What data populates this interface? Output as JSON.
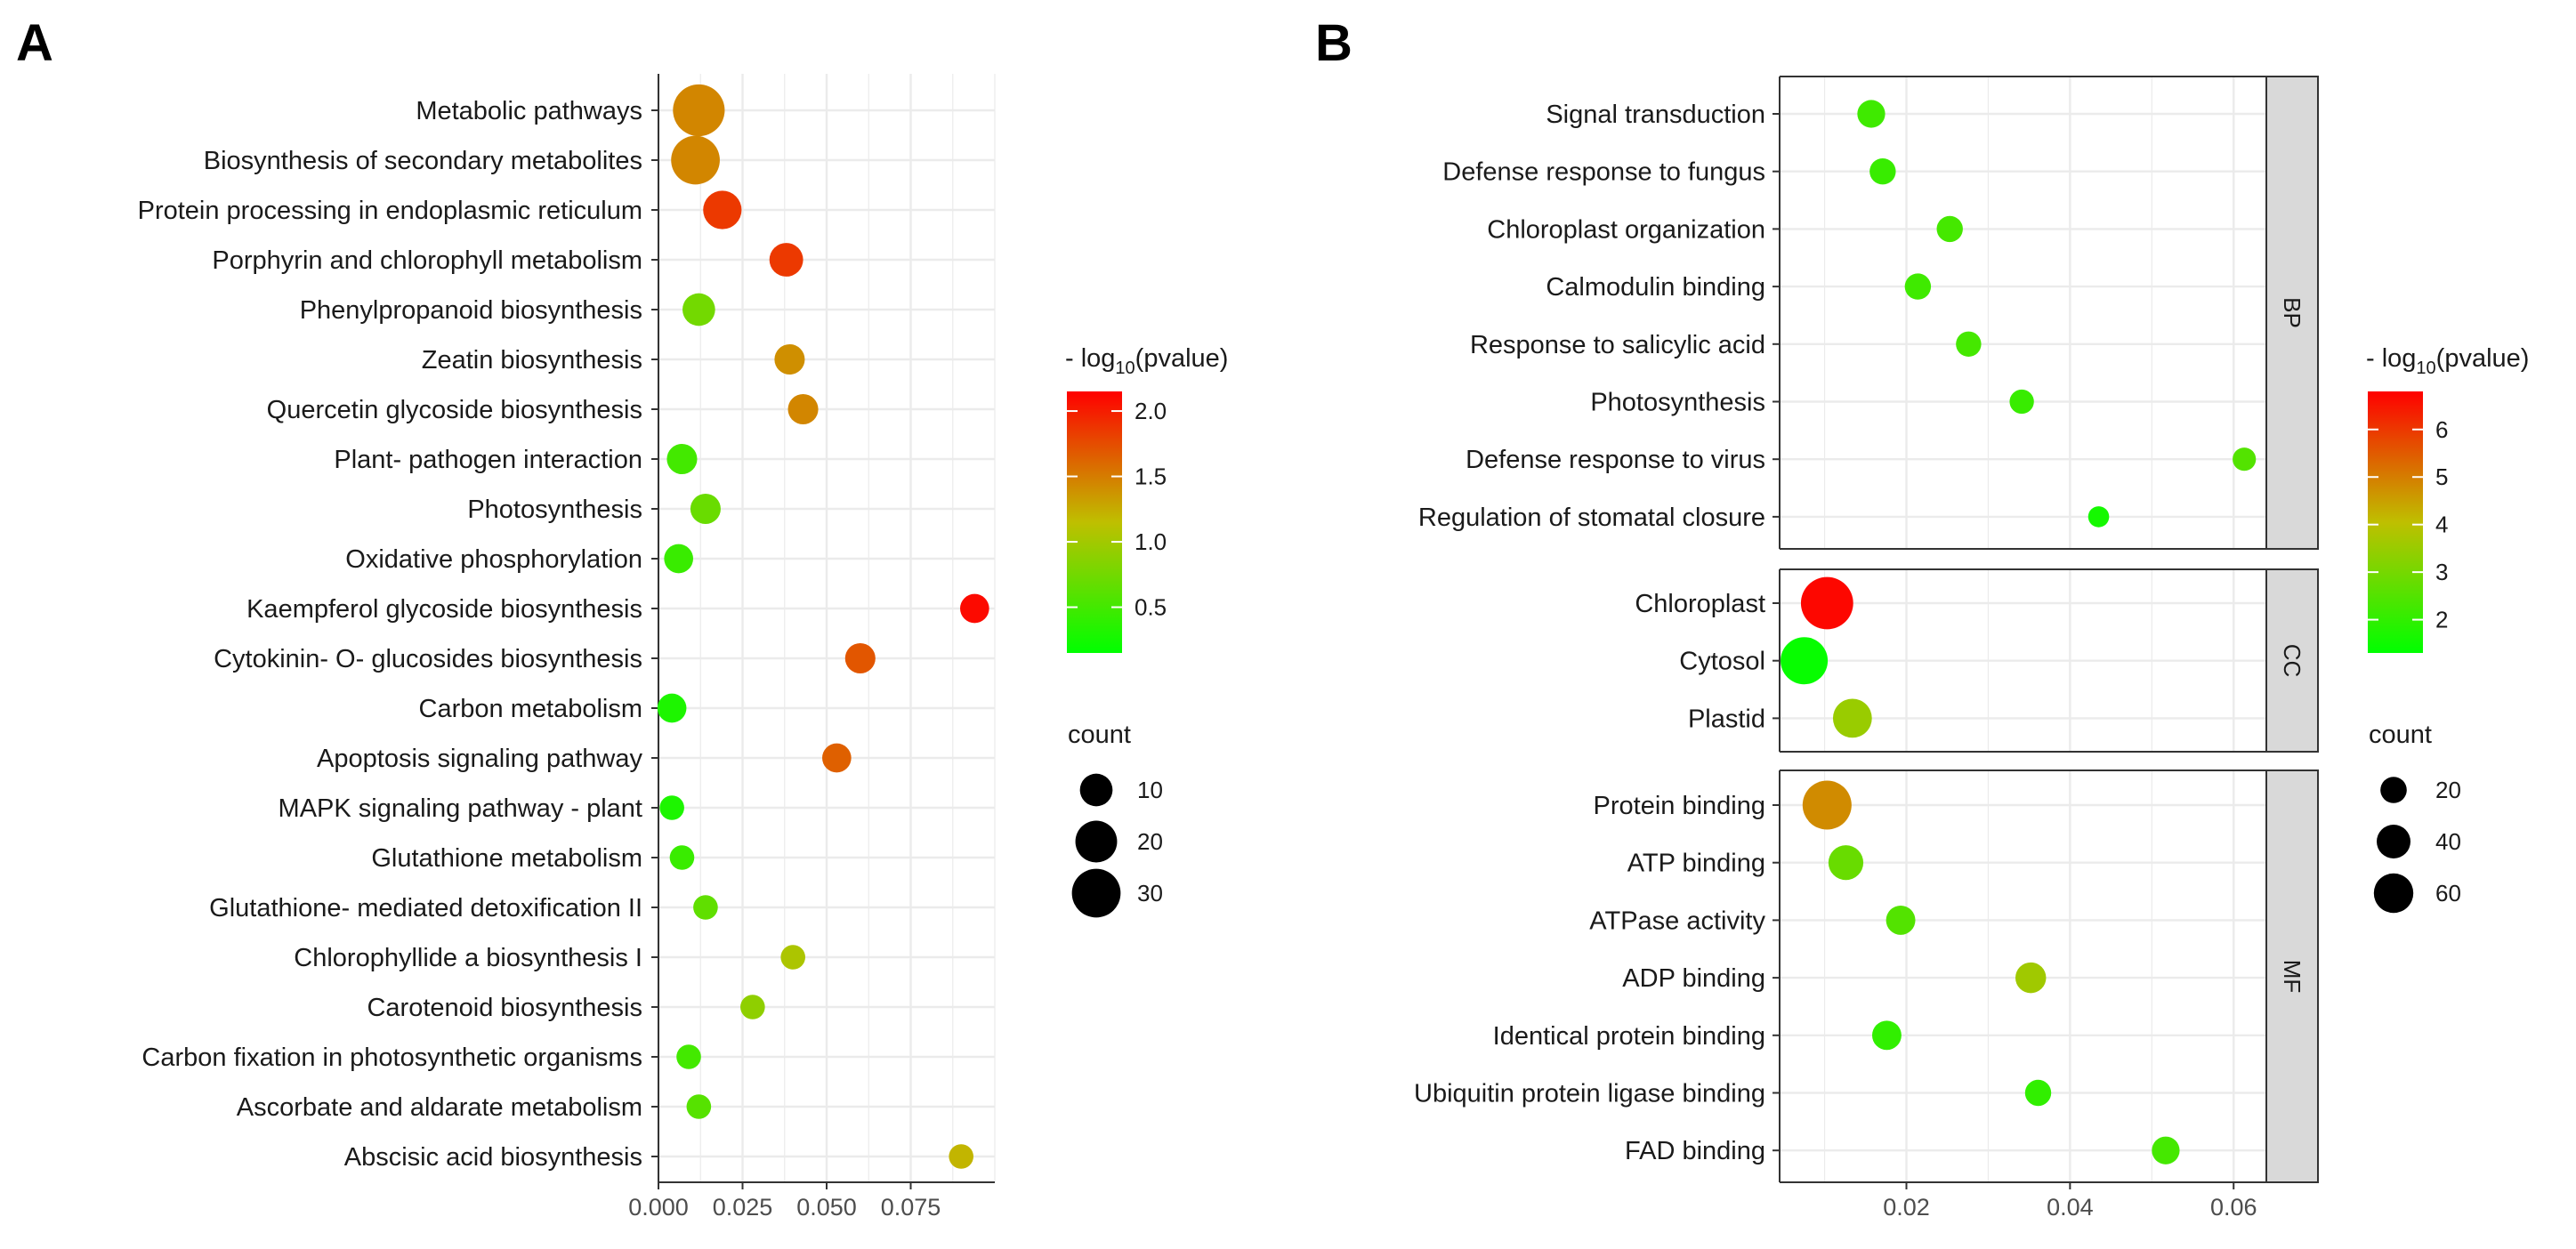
{
  "panels": {
    "a_label": "A",
    "b_label": "B"
  },
  "chart_data": [
    {
      "type": "scatter",
      "panel": "A",
      "title": "",
      "xlabel": "",
      "ylabel": "",
      "xlim": [
        0.0,
        0.1
      ],
      "xticks": [
        "0.000",
        "0.025",
        "0.050",
        "0.075"
      ],
      "points": [
        {
          "term": "Metabolic pathways",
          "x": 0.012,
          "count": 35,
          "color_value": 1.45
        },
        {
          "term": "Biosynthesis of secondary metabolites",
          "x": 0.011,
          "count": 30,
          "color_value": 1.45
        },
        {
          "term": "Protein processing in endoplasmic reticulum",
          "x": 0.019,
          "count": 16,
          "color_value": 1.85
        },
        {
          "term": "Porphyrin and chlorophyll metabolism",
          "x": 0.038,
          "count": 11,
          "color_value": 1.85
        },
        {
          "term": "Phenylpropanoid biosynthesis",
          "x": 0.012,
          "count": 10,
          "color_value": 0.75
        },
        {
          "term": "Zeatin biosynthesis",
          "x": 0.039,
          "count": 8,
          "color_value": 1.4
        },
        {
          "term": "Quercetin glycoside biosynthesis",
          "x": 0.043,
          "count": 8,
          "color_value": 1.45
        },
        {
          "term": "Plant- pathogen interaction",
          "x": 0.007,
          "count": 8,
          "color_value": 0.5
        },
        {
          "term": "Photosynthesis",
          "x": 0.014,
          "count": 8,
          "color_value": 0.7
        },
        {
          "term": "Oxidative phosphorylation",
          "x": 0.006,
          "count": 7,
          "color_value": 0.45
        },
        {
          "term": "Kaempferol glycoside biosynthesis",
          "x": 0.094,
          "count": 7,
          "color_value": 2.1
        },
        {
          "term": "Cytokinin- O- glucosides biosynthesis",
          "x": 0.06,
          "count": 8,
          "color_value": 1.7
        },
        {
          "term": "Carbon metabolism",
          "x": 0.004,
          "count": 7,
          "color_value": 0.3
        },
        {
          "term": "Apoptosis signaling pathway",
          "x": 0.053,
          "count": 7,
          "color_value": 1.65
        },
        {
          "term": "MAPK signaling pathway -  plant",
          "x": 0.004,
          "count": 4,
          "color_value": 0.3
        },
        {
          "term": "Glutathione metabolism",
          "x": 0.007,
          "count": 4,
          "color_value": 0.45
        },
        {
          "term": "Glutathione- mediated detoxification II",
          "x": 0.014,
          "count": 4,
          "color_value": 0.65
        },
        {
          "term": "Chlorophyllide a biosynthesis I",
          "x": 0.04,
          "count": 4,
          "color_value": 1.05
        },
        {
          "term": "Carotenoid biosynthesis",
          "x": 0.028,
          "count": 4,
          "color_value": 0.9
        },
        {
          "term": "Carbon fixation in photosynthetic organisms",
          "x": 0.009,
          "count": 4,
          "color_value": 0.5
        },
        {
          "term": "Ascorbate and aldarate metabolism",
          "x": 0.012,
          "count": 4,
          "color_value": 0.6
        },
        {
          "term": "Abscisic acid biosynthesis",
          "x": 0.09,
          "count": 4,
          "color_value": 1.2
        }
      ],
      "color_legend": {
        "title_prefix": "- log",
        "title_sub": "10",
        "title_suffix": "(pvalue)",
        "min": 0.15,
        "max": 2.15,
        "ticks": [
          0.5,
          1.0,
          1.5,
          2.0
        ],
        "tick_labels": [
          "0.5",
          "1.0",
          "1.5",
          "2.0"
        ]
      },
      "size_legend": {
        "title": "count",
        "values": [
          10,
          20,
          30
        ],
        "labels": [
          "10",
          "20",
          "30"
        ]
      }
    },
    {
      "type": "scatter",
      "panel": "B",
      "title": "",
      "xlabel": "",
      "ylabel": "",
      "xlim": [
        0.0045,
        0.064
      ],
      "xticks": [
        "0.02",
        "0.04",
        "0.06"
      ],
      "facets": [
        {
          "name": "BP",
          "points": [
            {
              "term": "Signal transduction",
              "x": 0.0157,
              "count": 11,
              "color_value": 2.2
            },
            {
              "term": "Defense response to fungus",
              "x": 0.0171,
              "count": 9,
              "color_value": 2.1
            },
            {
              "term": "Chloroplast organization",
              "x": 0.0253,
              "count": 9,
              "color_value": 2.3
            },
            {
              "term": "Calmodulin binding",
              "x": 0.0214,
              "count": 9,
              "color_value": 2.2
            },
            {
              "term": "Response to salicylic acid",
              "x": 0.0276,
              "count": 8,
              "color_value": 2.3
            },
            {
              "term": "Photosynthesis",
              "x": 0.0341,
              "count": 7,
              "color_value": 2.1
            },
            {
              "term": "Defense response to virus",
              "x": 0.0613,
              "count": 6,
              "color_value": 2.5
            },
            {
              "term": "Regulation of stomatal closure",
              "x": 0.0435,
              "count": 4,
              "color_value": 1.6
            }
          ]
        },
        {
          "name": "CC",
          "points": [
            {
              "term": "Chloroplast",
              "x": 0.0103,
              "count": 65,
              "color_value": 6.7
            },
            {
              "term": "Cytosol",
              "x": 0.0075,
              "count": 50,
              "color_value": 1.4
            },
            {
              "term": "Plastid",
              "x": 0.0134,
              "count": 30,
              "color_value": 3.5
            }
          ]
        },
        {
          "name": "MF",
          "points": [
            {
              "term": "Protein binding",
              "x": 0.0103,
              "count": 55,
              "color_value": 4.8
            },
            {
              "term": "ATP binding",
              "x": 0.0126,
              "count": 22,
              "color_value": 2.8
            },
            {
              "term": "ATPase activity",
              "x": 0.0193,
              "count": 13,
              "color_value": 2.5
            },
            {
              "term": "ADP binding",
              "x": 0.0352,
              "count": 15,
              "color_value": 3.6
            },
            {
              "term": "Identical protein binding",
              "x": 0.0176,
              "count": 13,
              "color_value": 2.0
            },
            {
              "term": "Ubiquitin protein ligase binding",
              "x": 0.0361,
              "count": 9,
              "color_value": 2.0
            },
            {
              "term": "FAD binding",
              "x": 0.0517,
              "count": 11,
              "color_value": 2.3
            }
          ]
        }
      ],
      "color_legend": {
        "title_prefix": "- log",
        "title_sub": "10",
        "title_suffix": "(pvalue)",
        "min": 1.3,
        "max": 6.8,
        "ticks": [
          2,
          3,
          4,
          5,
          6
        ],
        "tick_labels": [
          "2",
          "3",
          "4",
          "5",
          "6"
        ]
      },
      "size_legend": {
        "title": "count",
        "values": [
          20,
          40,
          60
        ],
        "labels": [
          "20",
          "40",
          "60"
        ]
      }
    }
  ]
}
